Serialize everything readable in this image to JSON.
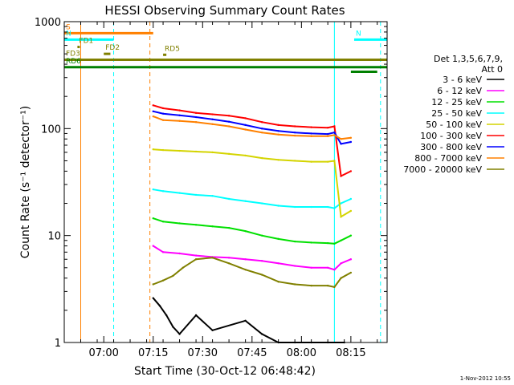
{
  "chart_data": {
    "type": "line",
    "title": "HESSI Observing Summary Count Rates",
    "xlabel": "Start Time (30-Oct-12 06:48:42)",
    "ylabel": "Count Rate (s⁻¹ detector⁻¹)",
    "ylim": [
      1,
      1000
    ],
    "yscale": "log",
    "xlim_minutes_after_0648": [
      0,
      98
    ],
    "x_ticks": [
      {
        "label": "07:00",
        "minutes": 12
      },
      {
        "label": "07:15",
        "minutes": 27
      },
      {
        "label": "07:30",
        "minutes": 42
      },
      {
        "label": "07:45",
        "minutes": 57
      },
      {
        "label": "08:00",
        "minutes": 72
      },
      {
        "label": "08:15",
        "minutes": 87
      }
    ],
    "y_ticks": [
      {
        "label": "1",
        "value": 1
      },
      {
        "label": "10",
        "value": 10
      },
      {
        "label": "100",
        "value": 100
      },
      {
        "label": "1000",
        "value": 1000
      }
    ],
    "legend": {
      "title_lines": [
        "Det 1,3,5,6,7,9,",
        "Att 0"
      ],
      "placement": "right"
    },
    "series": [
      {
        "name": "3 - 6 keV",
        "color": "#000000",
        "t": [
          27,
          29,
          31,
          33,
          35,
          40,
          45,
          55,
          60,
          65,
          70,
          75,
          80,
          85
        ],
        "y": [
          2.6,
          2.2,
          1.8,
          1.4,
          1.2,
          1.8,
          1.3,
          1.6,
          1.2,
          1.0,
          1.0,
          1.0,
          1.0,
          1.0
        ]
      },
      {
        "name": "6 - 12 keV",
        "color": "#ff00ff",
        "t": [
          27,
          30,
          35,
          40,
          45,
          50,
          55,
          60,
          65,
          70,
          75,
          80,
          82,
          84,
          87
        ],
        "y": [
          8.0,
          7.0,
          6.8,
          6.5,
          6.3,
          6.2,
          6.0,
          5.8,
          5.5,
          5.2,
          5.0,
          5.0,
          4.8,
          5.5,
          6.0
        ]
      },
      {
        "name": "12 - 25 keV",
        "color": "#00e000",
        "t": [
          27,
          30,
          35,
          40,
          45,
          50,
          55,
          60,
          65,
          70,
          75,
          80,
          82,
          84,
          87
        ],
        "y": [
          14.5,
          13.5,
          13.0,
          12.6,
          12.2,
          11.8,
          11.0,
          10.0,
          9.3,
          8.8,
          8.6,
          8.5,
          8.4,
          9.0,
          10.0
        ]
      },
      {
        "name": "25 - 50 keV",
        "color": "#00ffff",
        "t": [
          27,
          30,
          35,
          40,
          45,
          50,
          55,
          60,
          65,
          70,
          75,
          80,
          82,
          84,
          87
        ],
        "y": [
          27,
          26,
          25,
          24,
          23.5,
          22,
          21,
          20,
          19,
          18.5,
          18.5,
          18.5,
          18,
          20,
          22
        ]
      },
      {
        "name": "50 - 100 keV",
        "color": "#d4d400",
        "t": [
          27,
          30,
          35,
          40,
          45,
          50,
          55,
          60,
          65,
          70,
          75,
          80,
          82,
          84,
          87
        ],
        "y": [
          64,
          63,
          62,
          61,
          60,
          58,
          56,
          53,
          51,
          50,
          49,
          49,
          50,
          15,
          17
        ]
      },
      {
        "name": "100 - 300 keV",
        "color": "#ff0000",
        "t": [
          27,
          30,
          35,
          40,
          45,
          50,
          55,
          60,
          65,
          70,
          75,
          80,
          82,
          84,
          87
        ],
        "y": [
          165,
          155,
          148,
          140,
          136,
          132,
          125,
          115,
          108,
          105,
          103,
          102,
          105,
          36,
          40
        ]
      },
      {
        "name": "300 - 800 keV",
        "color": "#0000ff",
        "t": [
          27,
          30,
          35,
          40,
          45,
          50,
          55,
          60,
          65,
          70,
          75,
          80,
          82,
          84,
          87
        ],
        "y": [
          145,
          138,
          133,
          128,
          122,
          116,
          108,
          100,
          95,
          92,
          90,
          89,
          92,
          72,
          75
        ]
      },
      {
        "name": "800 - 7000 keV",
        "color": "#ff8000",
        "t": [
          27,
          30,
          35,
          40,
          45,
          50,
          55,
          60,
          65,
          70,
          75,
          80,
          82,
          84,
          87
        ],
        "y": [
          130,
          120,
          118,
          115,
          110,
          105,
          98,
          92,
          88,
          86,
          85,
          85,
          87,
          80,
          82
        ]
      },
      {
        "name": "7000 - 20000 keV",
        "color": "#808000",
        "t": [
          27,
          30,
          33,
          36,
          40,
          45,
          50,
          55,
          60,
          65,
          70,
          75,
          80,
          82,
          84,
          87
        ],
        "y": [
          3.5,
          3.8,
          4.2,
          5.0,
          6.0,
          6.2,
          5.5,
          4.8,
          4.3,
          3.7,
          3.5,
          3.4,
          3.4,
          3.3,
          4.0,
          4.5
        ]
      }
    ],
    "flags": [
      {
        "label": "S",
        "color": "#ff8000",
        "t0": 0,
        "t1": 27,
        "value": 780
      },
      {
        "label": "N",
        "color": "#00ffff",
        "t0": 0,
        "t1": 15,
        "value": 680
      },
      {
        "label": "N",
        "color": "#00ffff",
        "t0": 88,
        "t1": 98,
        "value": 680
      },
      {
        "label": "FD1",
        "color": "#808000",
        "t0": 4,
        "t1": 4,
        "value": 580
      },
      {
        "label": "FD2",
        "color": "#808000",
        "t0": 12,
        "t1": 14,
        "value": 500
      },
      {
        "label": "FD3",
        "color": "#808000",
        "t0": 0,
        "t1": 98,
        "value": 440
      },
      {
        "label": "RD5",
        "color": "#808000",
        "t0": 30,
        "t1": 31,
        "value": 490
      },
      {
        "label": "RD6",
        "color": "#008000",
        "t0": 0,
        "t1": 98,
        "value": 375
      },
      {
        "label": "",
        "color": "#008000",
        "t0": 87,
        "t1": 95,
        "value": 340
      }
    ],
    "vertical_markers": [
      {
        "color": "#ff8000",
        "style": "solid",
        "t": 5
      },
      {
        "color": "#00ffff",
        "style": "dashed",
        "t": 15
      },
      {
        "color": "#ff8000",
        "style": "dashed",
        "t": 26
      },
      {
        "color": "#00ffff",
        "style": "solid",
        "t": 82
      },
      {
        "color": "#00ffff",
        "style": "dashed",
        "t": 96
      }
    ],
    "grid": false,
    "footer_timestamp": "1-Nov-2012 10:55"
  }
}
